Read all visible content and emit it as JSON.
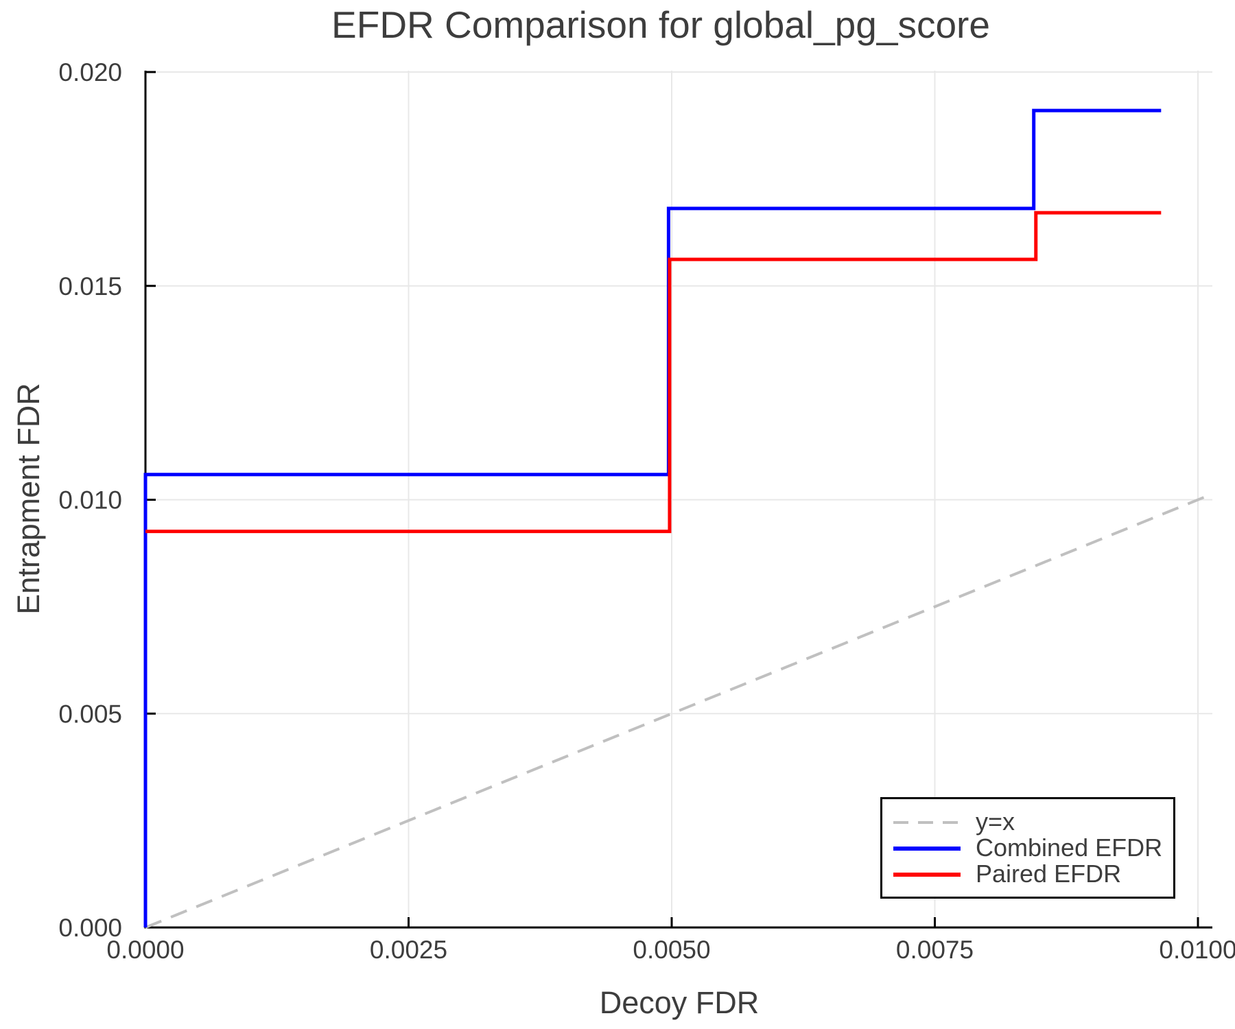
{
  "title": "EFDR Comparison for global_pg_score",
  "axes": {
    "xlabel": "Decoy FDR",
    "ylabel": "Entrapment FDR",
    "xtick_labels": [
      "0.0000",
      "0.0025",
      "0.0050",
      "0.0075",
      "0.0100"
    ],
    "ytick_labels": [
      "0.000",
      "0.005",
      "0.010",
      "0.015",
      "0.020"
    ]
  },
  "legend": {
    "position": "lower right",
    "items": [
      {
        "label": "y=x",
        "color": "#c0c0c0",
        "dashed": true
      },
      {
        "label": "Combined EFDR",
        "color": "#0000ff",
        "dashed": false
      },
      {
        "label": "Paired EFDR",
        "color": "#ff0000",
        "dashed": false
      }
    ]
  },
  "chart_data": {
    "type": "line",
    "subtype": "step",
    "title": "EFDR Comparison for global_pg_score",
    "xlabel": "Decoy FDR",
    "ylabel": "Entrapment FDR",
    "xlim": [
      0,
      0.010135
    ],
    "ylim": [
      0,
      0.02
    ],
    "xticks": [
      0,
      0.0025,
      0.005,
      0.0075,
      0.01
    ],
    "yticks": [
      0,
      0.005,
      0.01,
      0.015,
      0.02
    ],
    "grid": true,
    "legend_position": "lower right",
    "series": [
      {
        "name": "y=x",
        "color": "#c0c0c0",
        "style": "dashed",
        "width": 4,
        "points": [
          [
            0,
            0
          ],
          [
            0.0101,
            0.0101
          ]
        ]
      },
      {
        "name": "Combined EFDR",
        "color": "#0000ff",
        "style": "solid",
        "width": 5,
        "points": [
          [
            0,
            0
          ],
          [
            0,
            0.01059
          ],
          [
            0.00497,
            0.01059
          ],
          [
            0.00497,
            0.01681
          ],
          [
            0.00844,
            0.01681
          ],
          [
            0.00844,
            0.0191
          ],
          [
            0.00965,
            0.0191
          ]
        ]
      },
      {
        "name": "Paired EFDR",
        "color": "#ff0000",
        "style": "solid",
        "width": 5,
        "points": [
          [
            0,
            0.00926
          ],
          [
            0.00498,
            0.00926
          ],
          [
            0.00498,
            0.01562
          ],
          [
            0.00846,
            0.01562
          ],
          [
            0.00846,
            0.01671
          ],
          [
            0.00965,
            0.01671
          ]
        ]
      }
    ]
  },
  "style": {
    "grid_color": "#e8e8e8",
    "spine_color": "#000000",
    "text_color": "#3d3d3d",
    "background": "#ffffff"
  }
}
